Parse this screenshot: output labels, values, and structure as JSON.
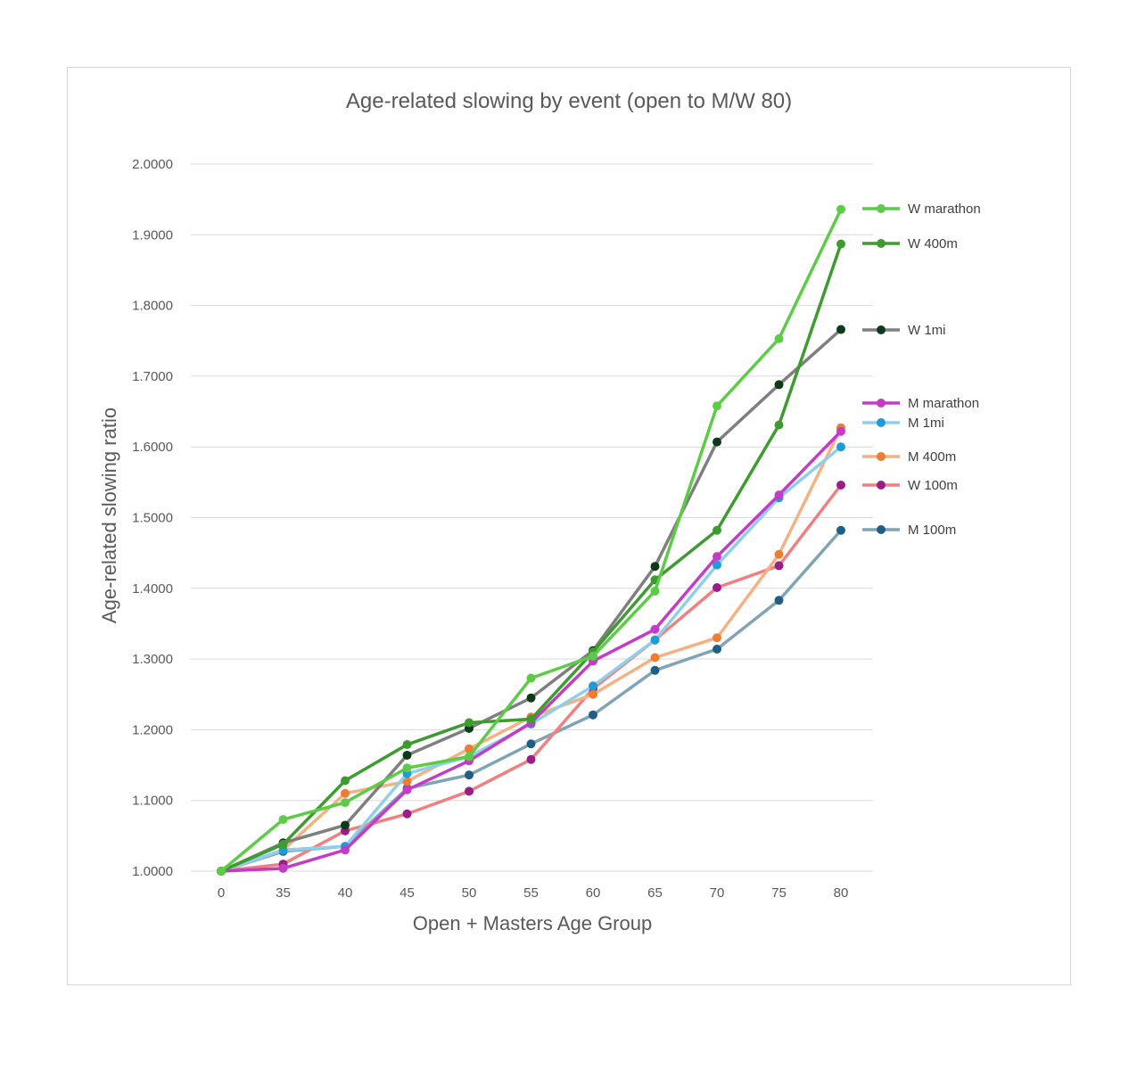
{
  "chart_data": {
    "type": "line",
    "title": "Age-related slowing by event (open to M/W 80)",
    "xlabel": "Open + Masters Age Group",
    "ylabel": "Age-related slowing ratio",
    "categories": [
      "0",
      "35",
      "40",
      "45",
      "50",
      "55",
      "60",
      "65",
      "70",
      "75",
      "80"
    ],
    "ylim": [
      1.0,
      2.0
    ],
    "yticks": [
      "1.0000",
      "1.1000",
      "1.2000",
      "1.3000",
      "1.4000",
      "1.5000",
      "1.6000",
      "1.7000",
      "1.8000",
      "1.9000",
      "2.0000"
    ],
    "grid": true,
    "legend_position": "right",
    "series": [
      {
        "name": "M 100m",
        "line_color": "#7fa4b8",
        "marker_color": "#1f5f86",
        "values": [
          1.0,
          1.028,
          1.035,
          1.117,
          1.136,
          1.18,
          1.221,
          1.284,
          1.314,
          1.383,
          1.482
        ]
      },
      {
        "name": "W 100m",
        "line_color": "#f08080",
        "marker_color": "#9b1e86",
        "values": [
          1.0,
          1.01,
          1.057,
          1.081,
          1.113,
          1.158,
          1.258,
          1.327,
          1.401,
          1.432,
          1.546
        ]
      },
      {
        "name": "M 400m",
        "line_color": "#f4b183",
        "marker_color": "#ed7d31",
        "values": [
          1.0,
          1.03,
          1.11,
          1.127,
          1.173,
          1.218,
          1.25,
          1.302,
          1.33,
          1.448,
          1.627
        ]
      },
      {
        "name": "M 1mi",
        "line_color": "#8fcfea",
        "marker_color": "#1e9cd8",
        "values": [
          1.0,
          1.03,
          1.035,
          1.138,
          1.162,
          1.208,
          1.262,
          1.327,
          1.433,
          1.528,
          1.6
        ]
      },
      {
        "name": "M marathon",
        "line_color": "#c43bc8",
        "marker_color": "#c43bc8",
        "values": [
          1.0,
          1.004,
          1.03,
          1.115,
          1.156,
          1.21,
          1.297,
          1.342,
          1.445,
          1.532,
          1.622
        ]
      },
      {
        "name": "W 1mi",
        "line_color": "#7f7f7f",
        "marker_color": "#0d3b1a",
        "values": [
          1.0,
          1.04,
          1.065,
          1.164,
          1.202,
          1.245,
          1.312,
          1.431,
          1.607,
          1.688,
          1.766
        ]
      },
      {
        "name": "W 400m",
        "line_color": "#3d9b2f",
        "marker_color": "#3d9b2f",
        "values": [
          1.0,
          1.038,
          1.128,
          1.179,
          1.21,
          1.215,
          1.31,
          1.412,
          1.482,
          1.631,
          1.887
        ]
      },
      {
        "name": "W marathon",
        "line_color": "#5ccc46",
        "marker_color": "#5ccc46",
        "values": [
          1.0,
          1.073,
          1.097,
          1.146,
          1.162,
          1.273,
          1.304,
          1.396,
          1.658,
          1.753,
          1.936
        ]
      }
    ]
  }
}
